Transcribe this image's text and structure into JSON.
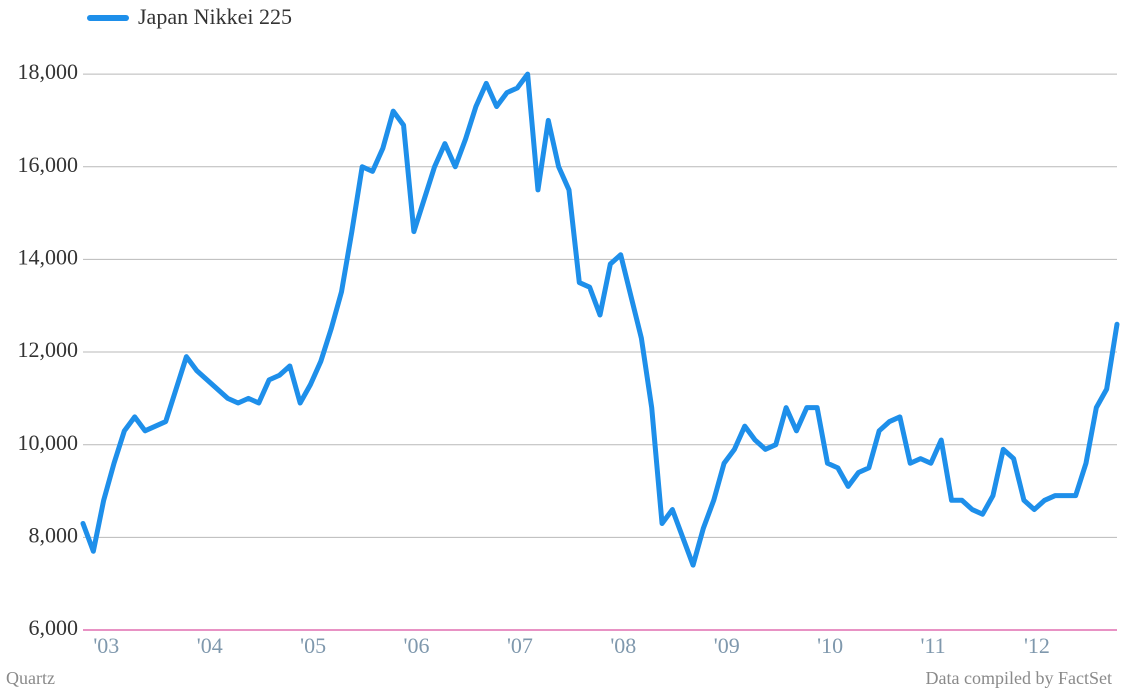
{
  "chart_data": {
    "type": "line",
    "credit": "Quartz",
    "source": "Data compiled by FactSet",
    "grid": true,
    "legend": "top-left",
    "xlim": [
      2002.9,
      2012.9
    ],
    "xticks": [
      {
        "value": 2003,
        "label": "'03"
      },
      {
        "value": 2004,
        "label": "'04"
      },
      {
        "value": 2005,
        "label": "'05"
      },
      {
        "value": 2006,
        "label": "'06"
      },
      {
        "value": 2007,
        "label": "'07"
      },
      {
        "value": 2008,
        "label": "'08"
      },
      {
        "value": 2009,
        "label": "'09"
      },
      {
        "value": 2010,
        "label": "'10"
      },
      {
        "value": 2011,
        "label": "'11"
      },
      {
        "value": 2012,
        "label": "'12"
      }
    ],
    "ylim": [
      6000,
      19600
    ],
    "yticks": [
      {
        "value": 6000,
        "label": "6,000"
      },
      {
        "value": 8000,
        "label": "8,000"
      },
      {
        "value": 10000,
        "label": "10,000"
      },
      {
        "value": 12000,
        "label": "12,000"
      },
      {
        "value": 14000,
        "label": "14,000"
      },
      {
        "value": 16000,
        "label": "16,000"
      },
      {
        "value": 18000,
        "label": "18,000"
      }
    ],
    "x": [
      2002.9,
      2003.0,
      2003.1,
      2003.2,
      2003.3,
      2003.4,
      2003.5,
      2003.6,
      2003.7,
      2003.8,
      2003.9,
      2004.0,
      2004.1,
      2004.2,
      2004.3,
      2004.4,
      2004.5,
      2004.6,
      2004.7,
      2004.8,
      2004.9,
      2005.0,
      2005.1,
      2005.2,
      2005.3,
      2005.4,
      2005.5,
      2005.6,
      2005.7,
      2005.8,
      2005.9,
      2006.0,
      2006.1,
      2006.2,
      2006.3,
      2006.4,
      2006.5,
      2006.6,
      2006.7,
      2006.8,
      2006.9,
      2007.0,
      2007.1,
      2007.2,
      2007.3,
      2007.4,
      2007.5,
      2007.6,
      2007.7,
      2007.8,
      2007.9,
      2008.0,
      2008.1,
      2008.2,
      2008.3,
      2008.4,
      2008.5,
      2008.6,
      2008.7,
      2008.8,
      2008.9,
      2009.0,
      2009.1,
      2009.2,
      2009.3,
      2009.4,
      2009.5,
      2009.6,
      2009.7,
      2009.8,
      2009.9,
      2010.0,
      2010.1,
      2010.2,
      2010.3,
      2010.4,
      2010.5,
      2010.6,
      2010.7,
      2010.8,
      2010.9,
      2011.0,
      2011.1,
      2011.2,
      2011.3,
      2011.4,
      2011.5,
      2011.6,
      2011.7,
      2011.8,
      2011.9,
      2012.0,
      2012.1,
      2012.2,
      2012.3,
      2012.4,
      2012.5,
      2012.6,
      2012.7,
      2012.8,
      2012.9
    ],
    "series": [
      {
        "name": "Japan Nikkei 225",
        "color": "#1e8fea",
        "values": [
          8300,
          7700,
          8800,
          9600,
          10300,
          10600,
          10300,
          10400,
          10500,
          11200,
          11900,
          11600,
          11400,
          11200,
          11000,
          10900,
          11000,
          10900,
          11400,
          11500,
          11700,
          10900,
          11300,
          11800,
          12500,
          13300,
          14600,
          16000,
          15900,
          16400,
          17200,
          16900,
          14600,
          15300,
          16000,
          16500,
          16000,
          16600,
          17300,
          17800,
          17300,
          17600,
          17700,
          18000,
          15500,
          17000,
          16000,
          15500,
          13500,
          13400,
          12800,
          13900,
          14100,
          13200,
          12300,
          10800,
          8300,
          8600,
          8000,
          7400,
          8200,
          8800,
          9600,
          9900,
          10400,
          10100,
          9900,
          10000,
          10800,
          10300,
          10800,
          10800,
          9600,
          9500,
          9100,
          9400,
          9500,
          10300,
          10500,
          10600,
          9600,
          9700,
          9600,
          10100,
          8800,
          8800,
          8600,
          8500,
          8900,
          9900,
          9700,
          8800,
          8600,
          8800,
          8900,
          8900,
          8900,
          9600,
          10800,
          11200,
          12600
        ]
      }
    ]
  }
}
